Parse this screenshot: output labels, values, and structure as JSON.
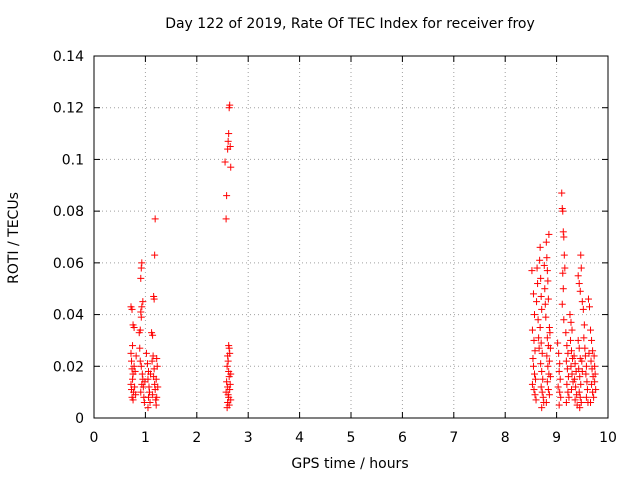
{
  "chart_data": {
    "type": "scatter",
    "title": "Day 122 of 2019, Rate Of TEC Index for receiver froy",
    "xlabel": "GPS time / hours",
    "ylabel": "ROTI / TECUs",
    "xlim": [
      0,
      10
    ],
    "ylim": [
      0,
      0.14
    ],
    "xticks": [
      0,
      1,
      2,
      3,
      4,
      5,
      6,
      7,
      8,
      9,
      10
    ],
    "xtick_labels": [
      "0",
      "1",
      "2",
      "3",
      "4",
      "5",
      "6",
      "7",
      "8",
      "9",
      "10"
    ],
    "yticks": [
      0,
      0.02,
      0.04,
      0.06,
      0.08,
      0.1,
      0.12,
      0.14
    ],
    "ytick_labels": [
      "0",
      "0.02",
      "0.04",
      "0.06",
      "0.08",
      "0.1",
      "0.12",
      "0.14"
    ],
    "grid": true,
    "marker": "+",
    "series": [
      {
        "name": "ROTI",
        "color": "#ff0000",
        "points": [
          [
            0.72,
            0.043
          ],
          [
            0.74,
            0.042
          ],
          [
            0.76,
            0.036
          ],
          [
            0.78,
            0.035
          ],
          [
            0.75,
            0.028
          ],
          [
            0.72,
            0.025
          ],
          [
            0.73,
            0.022
          ],
          [
            0.74,
            0.019
          ],
          [
            0.76,
            0.017
          ],
          [
            0.75,
            0.015
          ],
          [
            0.72,
            0.013
          ],
          [
            0.73,
            0.011
          ],
          [
            0.77,
            0.01
          ],
          [
            0.74,
            0.008
          ],
          [
            0.76,
            0.007
          ],
          [
            0.78,
            0.02
          ],
          [
            0.8,
            0.018
          ],
          [
            0.79,
            0.012
          ],
          [
            0.81,
            0.009
          ],
          [
            0.82,
            0.024
          ],
          [
            0.88,
            0.033
          ],
          [
            0.9,
            0.034
          ],
          [
            0.91,
            0.041
          ],
          [
            0.92,
            0.039
          ],
          [
            0.93,
            0.043
          ],
          [
            0.95,
            0.045
          ],
          [
            0.91,
            0.054
          ],
          [
            0.92,
            0.058
          ],
          [
            0.93,
            0.06
          ],
          [
            0.89,
            0.027
          ],
          [
            0.9,
            0.022
          ],
          [
            0.92,
            0.02
          ],
          [
            0.94,
            0.017
          ],
          [
            0.95,
            0.015
          ],
          [
            0.93,
            0.013
          ],
          [
            0.96,
            0.012
          ],
          [
            0.91,
            0.01
          ],
          [
            0.97,
            0.008
          ],
          [
            0.98,
            0.006
          ],
          [
            0.99,
            0.014
          ],
          [
            1.02,
            0.025
          ],
          [
            1.04,
            0.021
          ],
          [
            1.06,
            0.018
          ],
          [
            1.05,
            0.015
          ],
          [
            1.07,
            0.012
          ],
          [
            1.08,
            0.01
          ],
          [
            1.06,
            0.008
          ],
          [
            1.09,
            0.006
          ],
          [
            1.05,
            0.004
          ],
          [
            1.1,
            0.017
          ],
          [
            1.12,
            0.033
          ],
          [
            1.14,
            0.032
          ],
          [
            1.16,
            0.047
          ],
          [
            1.17,
            0.046
          ],
          [
            1.18,
            0.063
          ],
          [
            1.19,
            0.077
          ],
          [
            1.15,
            0.024
          ],
          [
            1.13,
            0.022
          ],
          [
            1.17,
            0.019
          ],
          [
            1.16,
            0.016
          ],
          [
            1.18,
            0.013
          ],
          [
            1.19,
            0.011
          ],
          [
            1.14,
            0.009
          ],
          [
            1.2,
            0.007
          ],
          [
            1.21,
            0.005
          ],
          [
            1.22,
            0.023
          ],
          [
            1.23,
            0.02
          ],
          [
            1.21,
            0.015
          ],
          [
            1.24,
            0.012
          ],
          [
            1.22,
            0.008
          ],
          [
            2.55,
            0.099
          ],
          [
            2.58,
            0.086
          ],
          [
            2.57,
            0.077
          ],
          [
            2.6,
            0.104
          ],
          [
            2.61,
            0.107
          ],
          [
            2.62,
            0.11
          ],
          [
            2.63,
            0.12
          ],
          [
            2.64,
            0.121
          ],
          [
            2.65,
            0.105
          ],
          [
            2.66,
            0.097
          ],
          [
            2.62,
            0.028
          ],
          [
            2.63,
            0.027
          ],
          [
            2.64,
            0.025
          ],
          [
            2.6,
            0.024
          ],
          [
            2.61,
            0.022
          ],
          [
            2.59,
            0.02
          ],
          [
            2.62,
            0.018
          ],
          [
            2.63,
            0.016
          ],
          [
            2.58,
            0.014
          ],
          [
            2.6,
            0.012
          ],
          [
            2.64,
            0.011
          ],
          [
            2.61,
            0.009
          ],
          [
            2.62,
            0.008
          ],
          [
            2.6,
            0.006
          ],
          [
            2.63,
            0.005
          ],
          [
            2.59,
            0.004
          ],
          [
            2.65,
            0.013
          ],
          [
            2.66,
            0.017
          ],
          [
            2.57,
            0.01
          ],
          [
            2.66,
            0.007
          ],
          [
            8.52,
            0.057
          ],
          [
            8.55,
            0.048
          ],
          [
            8.57,
            0.04
          ],
          [
            8.53,
            0.034
          ],
          [
            8.56,
            0.03
          ],
          [
            8.58,
            0.026
          ],
          [
            8.54,
            0.023
          ],
          [
            8.55,
            0.02
          ],
          [
            8.57,
            0.017
          ],
          [
            8.59,
            0.015
          ],
          [
            8.53,
            0.013
          ],
          [
            8.56,
            0.011
          ],
          [
            8.58,
            0.009
          ],
          [
            8.6,
            0.007
          ],
          [
            8.62,
            0.058
          ],
          [
            8.63,
            0.052
          ],
          [
            8.61,
            0.045
          ],
          [
            8.64,
            0.038
          ],
          [
            8.65,
            0.031
          ],
          [
            8.66,
            0.027
          ],
          [
            8.67,
            0.061
          ],
          [
            8.68,
            0.066
          ],
          [
            8.69,
            0.054
          ],
          [
            8.7,
            0.047
          ],
          [
            8.71,
            0.042
          ],
          [
            8.68,
            0.035
          ],
          [
            8.7,
            0.029
          ],
          [
            8.72,
            0.025
          ],
          [
            8.69,
            0.021
          ],
          [
            8.71,
            0.018
          ],
          [
            8.73,
            0.015
          ],
          [
            8.7,
            0.012
          ],
          [
            8.72,
            0.01
          ],
          [
            8.74,
            0.008
          ],
          [
            8.75,
            0.006
          ],
          [
            8.71,
            0.004
          ],
          [
            8.76,
            0.059
          ],
          [
            8.77,
            0.05
          ],
          [
            8.78,
            0.044
          ],
          [
            8.79,
            0.039
          ],
          [
            8.8,
            0.068
          ],
          [
            8.81,
            0.062
          ],
          [
            8.82,
            0.057
          ],
          [
            8.83,
            0.053
          ],
          [
            8.84,
            0.046
          ],
          [
            8.85,
            0.071
          ],
          [
            8.86,
            0.035
          ],
          [
            8.82,
            0.031
          ],
          [
            8.84,
            0.028
          ],
          [
            8.81,
            0.024
          ],
          [
            8.83,
            0.02
          ],
          [
            8.85,
            0.017
          ],
          [
            8.82,
            0.014
          ],
          [
            8.84,
            0.011
          ],
          [
            8.86,
            0.009
          ],
          [
            8.8,
            0.006
          ],
          [
            8.87,
            0.033
          ],
          [
            8.88,
            0.027
          ],
          [
            8.86,
            0.022
          ],
          [
            8.88,
            0.016
          ],
          [
            9.02,
            0.029
          ],
          [
            9.04,
            0.025
          ],
          [
            9.06,
            0.021
          ],
          [
            9.05,
            0.018
          ],
          [
            9.07,
            0.015
          ],
          [
            9.03,
            0.012
          ],
          [
            9.06,
            0.01
          ],
          [
            9.08,
            0.008
          ],
          [
            9.05,
            0.005
          ],
          [
            9.1,
            0.087
          ],
          [
            9.11,
            0.081
          ],
          [
            9.12,
            0.08
          ],
          [
            9.13,
            0.072
          ],
          [
            9.14,
            0.07
          ],
          [
            9.15,
            0.063
          ],
          [
            9.12,
            0.056
          ],
          [
            9.13,
            0.05
          ],
          [
            9.11,
            0.044
          ],
          [
            9.14,
            0.038
          ],
          [
            9.16,
            0.058
          ],
          [
            9.18,
            0.033
          ],
          [
            9.2,
            0.028
          ],
          [
            9.22,
            0.025
          ],
          [
            9.19,
            0.022
          ],
          [
            9.21,
            0.019
          ],
          [
            9.23,
            0.016
          ],
          [
            9.2,
            0.013
          ],
          [
            9.22,
            0.01
          ],
          [
            9.24,
            0.008
          ],
          [
            9.19,
            0.006
          ],
          [
            9.26,
            0.04
          ],
          [
            9.28,
            0.037
          ],
          [
            9.3,
            0.034
          ],
          [
            9.27,
            0.03
          ],
          [
            9.29,
            0.026
          ],
          [
            9.31,
            0.023
          ],
          [
            9.28,
            0.02
          ],
          [
            9.3,
            0.017
          ],
          [
            9.32,
            0.014
          ],
          [
            9.29,
            0.011
          ],
          [
            9.34,
            0.024
          ],
          [
            9.36,
            0.021
          ],
          [
            9.38,
            0.018
          ],
          [
            9.35,
            0.015
          ],
          [
            9.37,
            0.012
          ],
          [
            9.39,
            0.009
          ],
          [
            9.36,
            0.007
          ],
          [
            9.4,
            0.005
          ],
          [
            9.42,
            0.03
          ],
          [
            9.44,
            0.027
          ],
          [
            9.46,
            0.023
          ],
          [
            9.43,
            0.019
          ],
          [
            9.45,
            0.016
          ],
          [
            9.47,
            0.013
          ],
          [
            9.44,
            0.01
          ],
          [
            9.46,
            0.008
          ],
          [
            9.48,
            0.006
          ],
          [
            9.45,
            0.004
          ],
          [
            9.49,
            0.022
          ],
          [
            9.5,
            0.018
          ],
          [
            9.42,
            0.055
          ],
          [
            9.44,
            0.052
          ],
          [
            9.46,
            0.049
          ],
          [
            9.48,
            0.058
          ],
          [
            9.47,
            0.063
          ],
          [
            9.5,
            0.045
          ],
          [
            9.52,
            0.042
          ],
          [
            9.54,
            0.036
          ],
          [
            9.53,
            0.031
          ],
          [
            9.55,
            0.027
          ],
          [
            9.56,
            0.024
          ],
          [
            9.58,
            0.02
          ],
          [
            9.57,
            0.017
          ],
          [
            9.59,
            0.014
          ],
          [
            9.6,
            0.011
          ],
          [
            9.58,
            0.008
          ],
          [
            9.61,
            0.006
          ],
          [
            9.62,
            0.046
          ],
          [
            9.64,
            0.043
          ],
          [
            9.63,
            0.025
          ],
          [
            9.66,
            0.034
          ],
          [
            9.68,
            0.03
          ],
          [
            9.7,
            0.026
          ],
          [
            9.67,
            0.022
          ],
          [
            9.69,
            0.019
          ],
          [
            9.71,
            0.016
          ],
          [
            9.68,
            0.013
          ],
          [
            9.7,
            0.01
          ],
          [
            9.72,
            0.008
          ],
          [
            9.66,
            0.006
          ],
          [
            9.73,
            0.024
          ],
          [
            9.74,
            0.02
          ],
          [
            9.75,
            0.017
          ],
          [
            9.74,
            0.014
          ],
          [
            9.76,
            0.011
          ]
        ]
      }
    ]
  }
}
